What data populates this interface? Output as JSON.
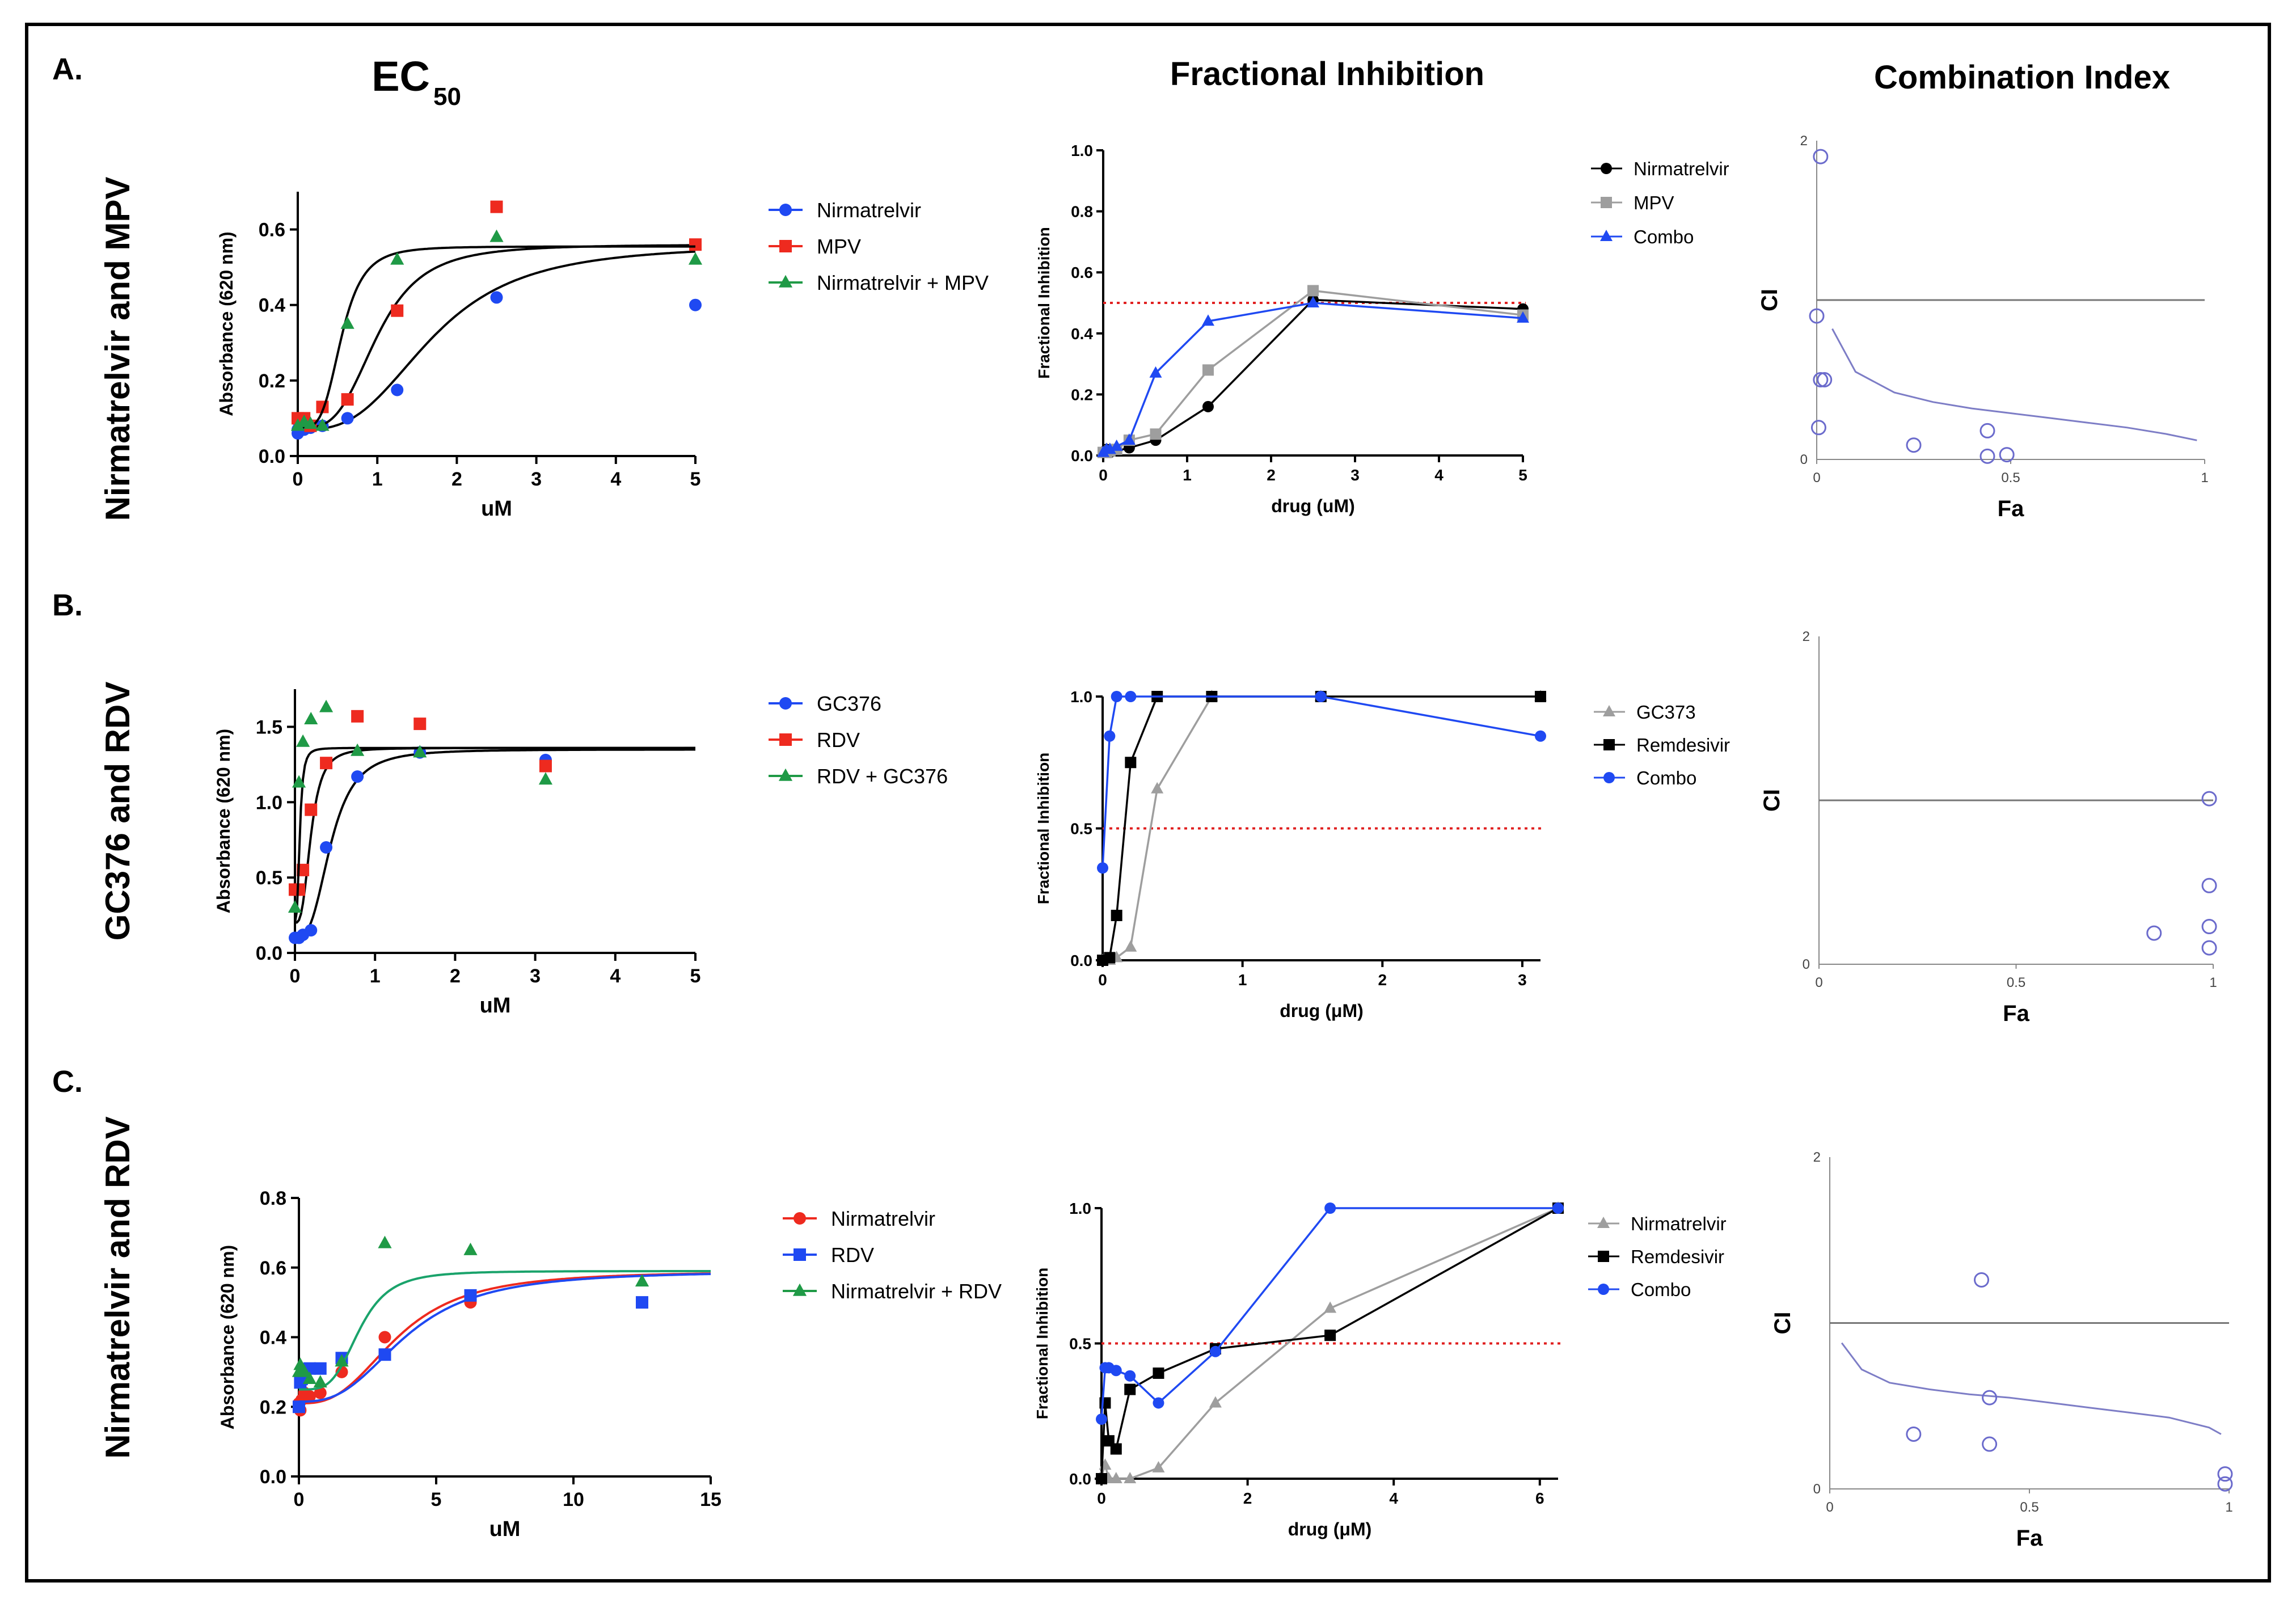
{
  "figure": {
    "columns": {
      "ec50": "EC",
      "ec50_sub": "50",
      "fi": "Fractional Inhibition",
      "ci": "Combination Index"
    }
  },
  "colors": {
    "red": "#ee2a1f",
    "blue": "#1f49f2",
    "green": "#1f9a46",
    "grey": "#9e9e9e",
    "black": "#000000",
    "curve_green": "#1aa36b",
    "ci_point": "#6b6bcc",
    "ci_line": "#7d7dc6",
    "threshold": "#e02020"
  },
  "rows": [
    {
      "panel_label": "A.",
      "row_title": "Nirmatrelvir and MPV",
      "ec50": {
        "type": "scatter",
        "xlabel": "uM",
        "ylabel": "Absorbance (620 nm)",
        "xlim": [
          0,
          5
        ],
        "ylim": [
          0,
          0.7
        ],
        "xticks": [
          0,
          1,
          2,
          3,
          4,
          5
        ],
        "yticks": [
          0,
          0.2,
          0.4,
          0.6
        ],
        "yticklabels": [
          "0.0",
          "0.2",
          "0.4",
          "0.6"
        ],
        "series": [
          {
            "name": "Nirmatrelvir",
            "color": "blue",
            "marker": "circle",
            "x": [
              0,
              0,
              0.02,
              0.04,
              0.08,
              0.16,
              0.31,
              0.625,
              1.25,
              2.5,
              5
            ],
            "y": [
              0.06,
              0.07,
              0.08,
              0.07,
              0.07,
              0.075,
              0.08,
              0.1,
              0.175,
              0.42,
              0.4
            ],
            "curve": {
              "bottom": 0.07,
              "top": 0.56,
              "ec50": 1.7,
              "hill": 3
            }
          },
          {
            "name": "MPV",
            "color": "red",
            "marker": "square",
            "x": [
              0,
              0.08,
              0.16,
              0.31,
              0.625,
              1.25,
              2.5,
              5
            ],
            "y": [
              0.1,
              0.1,
              0.08,
              0.13,
              0.15,
              0.385,
              0.66,
              0.56
            ],
            "curve": {
              "bottom": 0.075,
              "top": 0.56,
              "ec50": 1.0,
              "hill": 3.5
            }
          },
          {
            "name": "Nirmatrelvir + MPV",
            "color": "green",
            "marker": "triangle",
            "x": [
              0,
              0.08,
              0.16,
              0.31,
              0.625,
              1.25,
              2.5,
              5
            ],
            "y": [
              0.08,
              0.09,
              0.085,
              0.08,
              0.35,
              0.52,
              0.58,
              0.52
            ],
            "curve": {
              "bottom": 0.075,
              "top": 0.555,
              "ec50": 0.55,
              "hill": 4
            }
          }
        ]
      },
      "fi": {
        "type": "line",
        "xlabel": "drug (uM)",
        "ylabel": "Fractional Inhibition",
        "xlim": [
          0,
          5
        ],
        "ylim": [
          0,
          1.0
        ],
        "xticks": [
          0,
          1,
          2,
          3,
          4,
          5
        ],
        "yticks": [
          0,
          0.2,
          0.4,
          0.6,
          0.8,
          1.0
        ],
        "yticklabels": [
          "0.0",
          "0.2",
          "0.4",
          "0.6",
          "0.8",
          "1.0"
        ],
        "threshold": 0.5,
        "series": [
          {
            "name": "Nirmatrelvir",
            "color": "black",
            "marker": "circle",
            "x": [
              0,
              0.04,
              0.08,
              0.16,
              0.31,
              0.625,
              1.25,
              2.5,
              5
            ],
            "y": [
              0.01,
              0.02,
              0.01,
              0.015,
              0.025,
              0.05,
              0.16,
              0.51,
              0.48
            ]
          },
          {
            "name": "MPV",
            "color": "grey",
            "marker": "square",
            "x": [
              0,
              0.04,
              0.08,
              0.16,
              0.31,
              0.625,
              1.25,
              2.5,
              5
            ],
            "y": [
              0.01,
              0.01,
              0.015,
              0.02,
              0.05,
              0.07,
              0.28,
              0.54,
              0.46
            ]
          },
          {
            "name": "Combo",
            "color": "blue",
            "marker": "triangle",
            "x": [
              0,
              0.04,
              0.08,
              0.16,
              0.31,
              0.625,
              1.25,
              2.5,
              5
            ],
            "y": [
              0.01,
              0.02,
              0.02,
              0.03,
              0.05,
              0.27,
              0.44,
              0.5,
              0.45
            ]
          }
        ]
      },
      "ci": {
        "type": "scatter",
        "xlabel": "Fa",
        "ylabel": "CI",
        "xlim": [
          0,
          1
        ],
        "ylim": [
          0,
          2
        ],
        "xticks": [
          0,
          0.5,
          1
        ],
        "xticklabels": [
          "0",
          "0.5",
          "1"
        ],
        "yticks": [
          0,
          2
        ],
        "yticklabels": [
          "0",
          "2"
        ],
        "reference": 1,
        "points": {
          "x": [
            0.01,
            0.0,
            0.01,
            0.02,
            0.005,
            0.25,
            0.44,
            0.44,
            0.49
          ],
          "y": [
            1.9,
            0.9,
            0.5,
            0.5,
            0.2,
            0.09,
            0.18,
            0.02,
            0.03
          ]
        },
        "curve": {
          "x": [
            0.04,
            0.1,
            0.2,
            0.3,
            0.4,
            0.5,
            0.6,
            0.7,
            0.8,
            0.9,
            0.98
          ],
          "y": [
            0.82,
            0.55,
            0.42,
            0.36,
            0.32,
            0.29,
            0.26,
            0.23,
            0.2,
            0.16,
            0.12
          ]
        }
      }
    },
    {
      "panel_label": "B.",
      "row_title": "GC376 and RDV",
      "ec50": {
        "type": "scatter",
        "xlabel": "uM",
        "ylabel": "Absorbance (620 nm)",
        "xlim": [
          0,
          5
        ],
        "ylim": [
          0,
          1.75
        ],
        "xticks": [
          0,
          1,
          2,
          3,
          4,
          5
        ],
        "yticks": [
          0,
          0.5,
          1.0,
          1.5
        ],
        "yticklabels": [
          "0.0",
          "0.5",
          "1.0",
          "1.5"
        ],
        "series": [
          {
            "name": "GC376",
            "color": "blue",
            "marker": "circle",
            "x": [
              0,
              0.05,
              0.1,
              0.2,
              0.39,
              0.78,
              1.56,
              3.13
            ],
            "y": [
              0.1,
              0.1,
              0.12,
              0.15,
              0.7,
              1.17,
              1.33,
              1.28
            ],
            "curve": {
              "bottom": 0.1,
              "top": 1.35,
              "ec50": 0.45,
              "hill": 3
            }
          },
          {
            "name": "RDV",
            "color": "red",
            "marker": "square",
            "x": [
              0,
              0.05,
              0.1,
              0.2,
              0.39,
              0.78,
              1.56,
              3.13
            ],
            "y": [
              0.42,
              0.42,
              0.55,
              0.95,
              1.26,
              1.57,
              1.52,
              1.24
            ],
            "curve": {
              "bottom": 0.2,
              "top": 1.36,
              "ec50": 0.2,
              "hill": 3
            }
          },
          {
            "name": "RDV + GC376",
            "color": "green",
            "marker": "triangle",
            "x": [
              0,
              0.05,
              0.1,
              0.2,
              0.39,
              0.78,
              1.56,
              3.13
            ],
            "y": [
              0.3,
              1.13,
              1.4,
              1.55,
              1.63,
              1.34,
              1.33,
              1.15
            ],
            "curve": {
              "bottom": 0.2,
              "top": 1.36,
              "ec50": 0.06,
              "hill": 3
            }
          }
        ]
      },
      "fi": {
        "type": "line",
        "xlabel": "drug (μM)",
        "ylabel": "Fractional Inhibition",
        "xlim": [
          0,
          3.13
        ],
        "ylim": [
          0,
          1.0
        ],
        "xticks": [
          0,
          1,
          2,
          3
        ],
        "yticks": [
          0,
          0.5,
          1.0
        ],
        "yticklabels": [
          "0.0",
          "0.5",
          "1.0"
        ],
        "threshold": 0.5,
        "series": [
          {
            "name": "GC373",
            "color": "grey",
            "marker": "triangle",
            "x": [
              0,
              0.05,
              0.1,
              0.2,
              0.39,
              0.78,
              1.56,
              3.13
            ],
            "y": [
              0,
              0,
              0.01,
              0.05,
              0.65,
              1,
              1,
              1
            ]
          },
          {
            "name": "Remdesivir",
            "color": "black",
            "marker": "square",
            "x": [
              0,
              0.05,
              0.1,
              0.2,
              0.39,
              0.78,
              1.56,
              3.13
            ],
            "y": [
              0,
              0.01,
              0.17,
              0.75,
              1,
              1,
              1,
              1
            ]
          },
          {
            "name": "Combo",
            "color": "blue",
            "marker": "circle",
            "x": [
              0,
              0.05,
              0.1,
              0.2,
              1.56,
              3.13
            ],
            "y": [
              0.35,
              0.85,
              1,
              1,
              1,
              0.85
            ]
          }
        ]
      },
      "ci": {
        "type": "scatter",
        "xlabel": "Fa",
        "ylabel": "CI",
        "xlim": [
          0,
          1
        ],
        "ylim": [
          0,
          2
        ],
        "xticks": [
          0,
          0.5,
          1
        ],
        "xticklabels": [
          "0",
          "0.5",
          "1"
        ],
        "yticks": [
          0,
          2
        ],
        "yticklabels": [
          "0",
          "2"
        ],
        "reference": 1,
        "points": {
          "x": [
            0.99,
            0.99,
            0.99,
            0.99,
            0.85
          ],
          "y": [
            1.01,
            0.48,
            0.23,
            0.1,
            0.19
          ]
        },
        "curve": null
      }
    },
    {
      "panel_label": "C.",
      "row_title": "Nirmatrelvir and RDV",
      "ec50": {
        "type": "scatter",
        "xlabel": "uM",
        "ylabel": "Absorbance (620 nm)",
        "xlim": [
          0,
          15
        ],
        "ylim": [
          0,
          0.8
        ],
        "xticks": [
          0,
          5,
          10,
          15
        ],
        "yticks": [
          0,
          0.2,
          0.4,
          0.6,
          0.8
        ],
        "yticklabels": [
          "0.0",
          "0.2",
          "0.4",
          "0.6",
          "0.8"
        ],
        "series": [
          {
            "name": "Nirmatrelvir",
            "color": "red",
            "marker": "circle",
            "x": [
              0,
              0.05,
              0.1,
              0.2,
              0.39,
              0.78,
              1.56,
              3.13,
              6.25
            ],
            "y": [
              0.21,
              0.19,
              0.22,
              0.24,
              0.23,
              0.24,
              0.3,
              0.4,
              0.5
            ],
            "curve": {
              "bottom": 0.21,
              "top": 0.59,
              "ec50": 3.6,
              "hill": 2.8
            }
          },
          {
            "name": "RDV",
            "color": "blue",
            "marker": "square",
            "x": [
              0,
              0.05,
              0.1,
              0.2,
              0.39,
              0.78,
              1.56,
              3.13,
              6.25,
              12.5
            ],
            "y": [
              0.2,
              0.27,
              0.28,
              0.3,
              0.31,
              0.31,
              0.34,
              0.35,
              0.52,
              0.5
            ],
            "curve": {
              "bottom": 0.215,
              "top": 0.59,
              "ec50": 3.9,
              "hill": 2.8
            }
          },
          {
            "name": "Nirmatrelvir + RDV",
            "color": "green",
            "marker": "triangle",
            "x": [
              0,
              0.05,
              0.1,
              0.2,
              0.39,
              0.78,
              1.56,
              3.13,
              6.25,
              12.5
            ],
            "y": [
              0.3,
              0.32,
              0.31,
              0.3,
              0.28,
              0.27,
              0.33,
              0.67,
              0.65,
              0.56
            ],
            "curve": {
              "bottom": 0.25,
              "top": 0.59,
              "ec50": 2.2,
              "hill": 4
            }
          }
        ]
      },
      "fi": {
        "type": "line",
        "xlabel": "drug (μM)",
        "ylabel": "Fractional Inhibition",
        "xlim": [
          0,
          6.25
        ],
        "ylim": [
          0,
          1.0
        ],
        "xticks": [
          0,
          2,
          4,
          6
        ],
        "yticks": [
          0,
          0.5,
          1.0
        ],
        "yticklabels": [
          "0.0",
          "0.5",
          "1.0"
        ],
        "threshold": 0.5,
        "series": [
          {
            "name": "Nirmatrelvir",
            "color": "grey",
            "marker": "triangle",
            "x": [
              0,
              0.05,
              0.1,
              0.2,
              0.39,
              0.78,
              1.56,
              3.13,
              6.25
            ],
            "y": [
              0.01,
              0.05,
              0,
              0,
              0,
              0.04,
              0.28,
              0.63,
              1
            ]
          },
          {
            "name": "Remdesivir",
            "color": "black",
            "marker": "square",
            "x": [
              0,
              0.05,
              0.1,
              0.2,
              0.39,
              0.78,
              1.56,
              3.13,
              6.25
            ],
            "y": [
              0,
              0.28,
              0.14,
              0.11,
              0.33,
              0.39,
              0.48,
              0.53,
              1
            ]
          },
          {
            "name": "Combo",
            "color": "blue",
            "marker": "circle",
            "x": [
              0,
              0.05,
              0.1,
              0.2,
              0.39,
              0.78,
              1.56,
              3.13,
              6.25
            ],
            "y": [
              0.22,
              0.41,
              0.41,
              0.4,
              0.38,
              0.28,
              0.47,
              1,
              1
            ]
          }
        ]
      },
      "ci": {
        "type": "scatter",
        "xlabel": "Fa",
        "ylabel": "CI",
        "xlim": [
          0,
          1
        ],
        "ylim": [
          0,
          2
        ],
        "xticks": [
          0,
          0.5,
          1
        ],
        "xticklabels": [
          "0",
          "0.5",
          "1"
        ],
        "yticks": [
          0,
          2
        ],
        "yticklabels": [
          "0",
          "2"
        ],
        "reference": 1,
        "points": {
          "x": [
            0.38,
            0.21,
            0.4,
            0.4,
            0.99,
            0.99
          ],
          "y": [
            1.26,
            0.33,
            0.55,
            0.27,
            0.09,
            0.03
          ]
        },
        "curve": {
          "x": [
            0.03,
            0.08,
            0.15,
            0.25,
            0.35,
            0.45,
            0.55,
            0.65,
            0.75,
            0.85,
            0.95,
            0.98
          ],
          "y": [
            0.88,
            0.72,
            0.64,
            0.6,
            0.57,
            0.55,
            0.52,
            0.49,
            0.46,
            0.43,
            0.37,
            0.33
          ]
        }
      }
    }
  ]
}
